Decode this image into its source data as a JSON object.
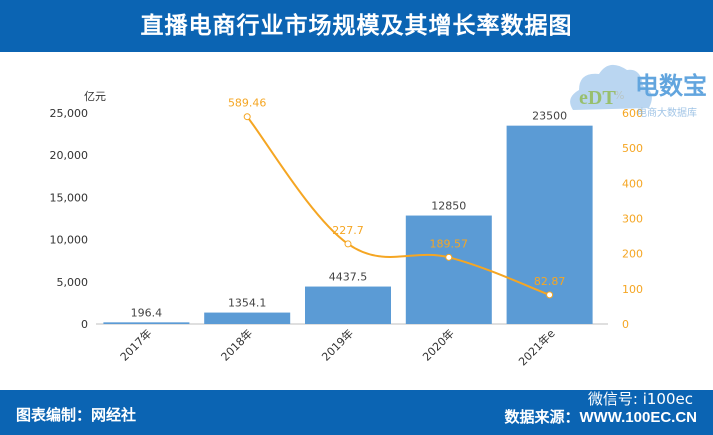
{
  "header": {
    "title": "直播电商行业市场规模及其增长率数据图"
  },
  "footer": {
    "left": "图表编制：网经社",
    "right": "数据来源：WWW.100EC.CN",
    "wechat": "微信号: i100ec"
  },
  "logo": {
    "name": "电数宝",
    "sub": "电商大数据库",
    "mark": "eDT"
  },
  "colors": {
    "bar": "#5b9bd5",
    "line": "#f5a623",
    "header": "#0b64b3"
  },
  "chart_data": {
    "type": "bar+line",
    "categories": [
      "2017年",
      "2018年",
      "2019年",
      "2020年",
      "2021年e"
    ],
    "left_axis": {
      "label": "亿元",
      "ylim": [
        0,
        25000
      ],
      "ticks": [
        "0",
        "5,000",
        "10,000",
        "15,000",
        "20,000",
        "25,000"
      ]
    },
    "right_axis": {
      "label": "%",
      "ylim": [
        0,
        600
      ],
      "ticks": [
        "0",
        "100",
        "200",
        "300",
        "400",
        "500",
        "600"
      ]
    },
    "series": [
      {
        "type": "bar",
        "axis": "left",
        "values": [
          196.4,
          1354.1,
          4437.5,
          12850,
          23500
        ],
        "labels": [
          "196.4",
          "1354.1",
          "4437.5",
          "12850",
          "23500"
        ]
      },
      {
        "type": "line",
        "axis": "right",
        "smooth": true,
        "values": [
          null,
          589.46,
          227.7,
          189.57,
          82.87
        ],
        "labels": [
          "",
          "589.46",
          "227.7",
          "189.57",
          "82.87"
        ]
      }
    ],
    "grid": false,
    "legend": "none"
  }
}
